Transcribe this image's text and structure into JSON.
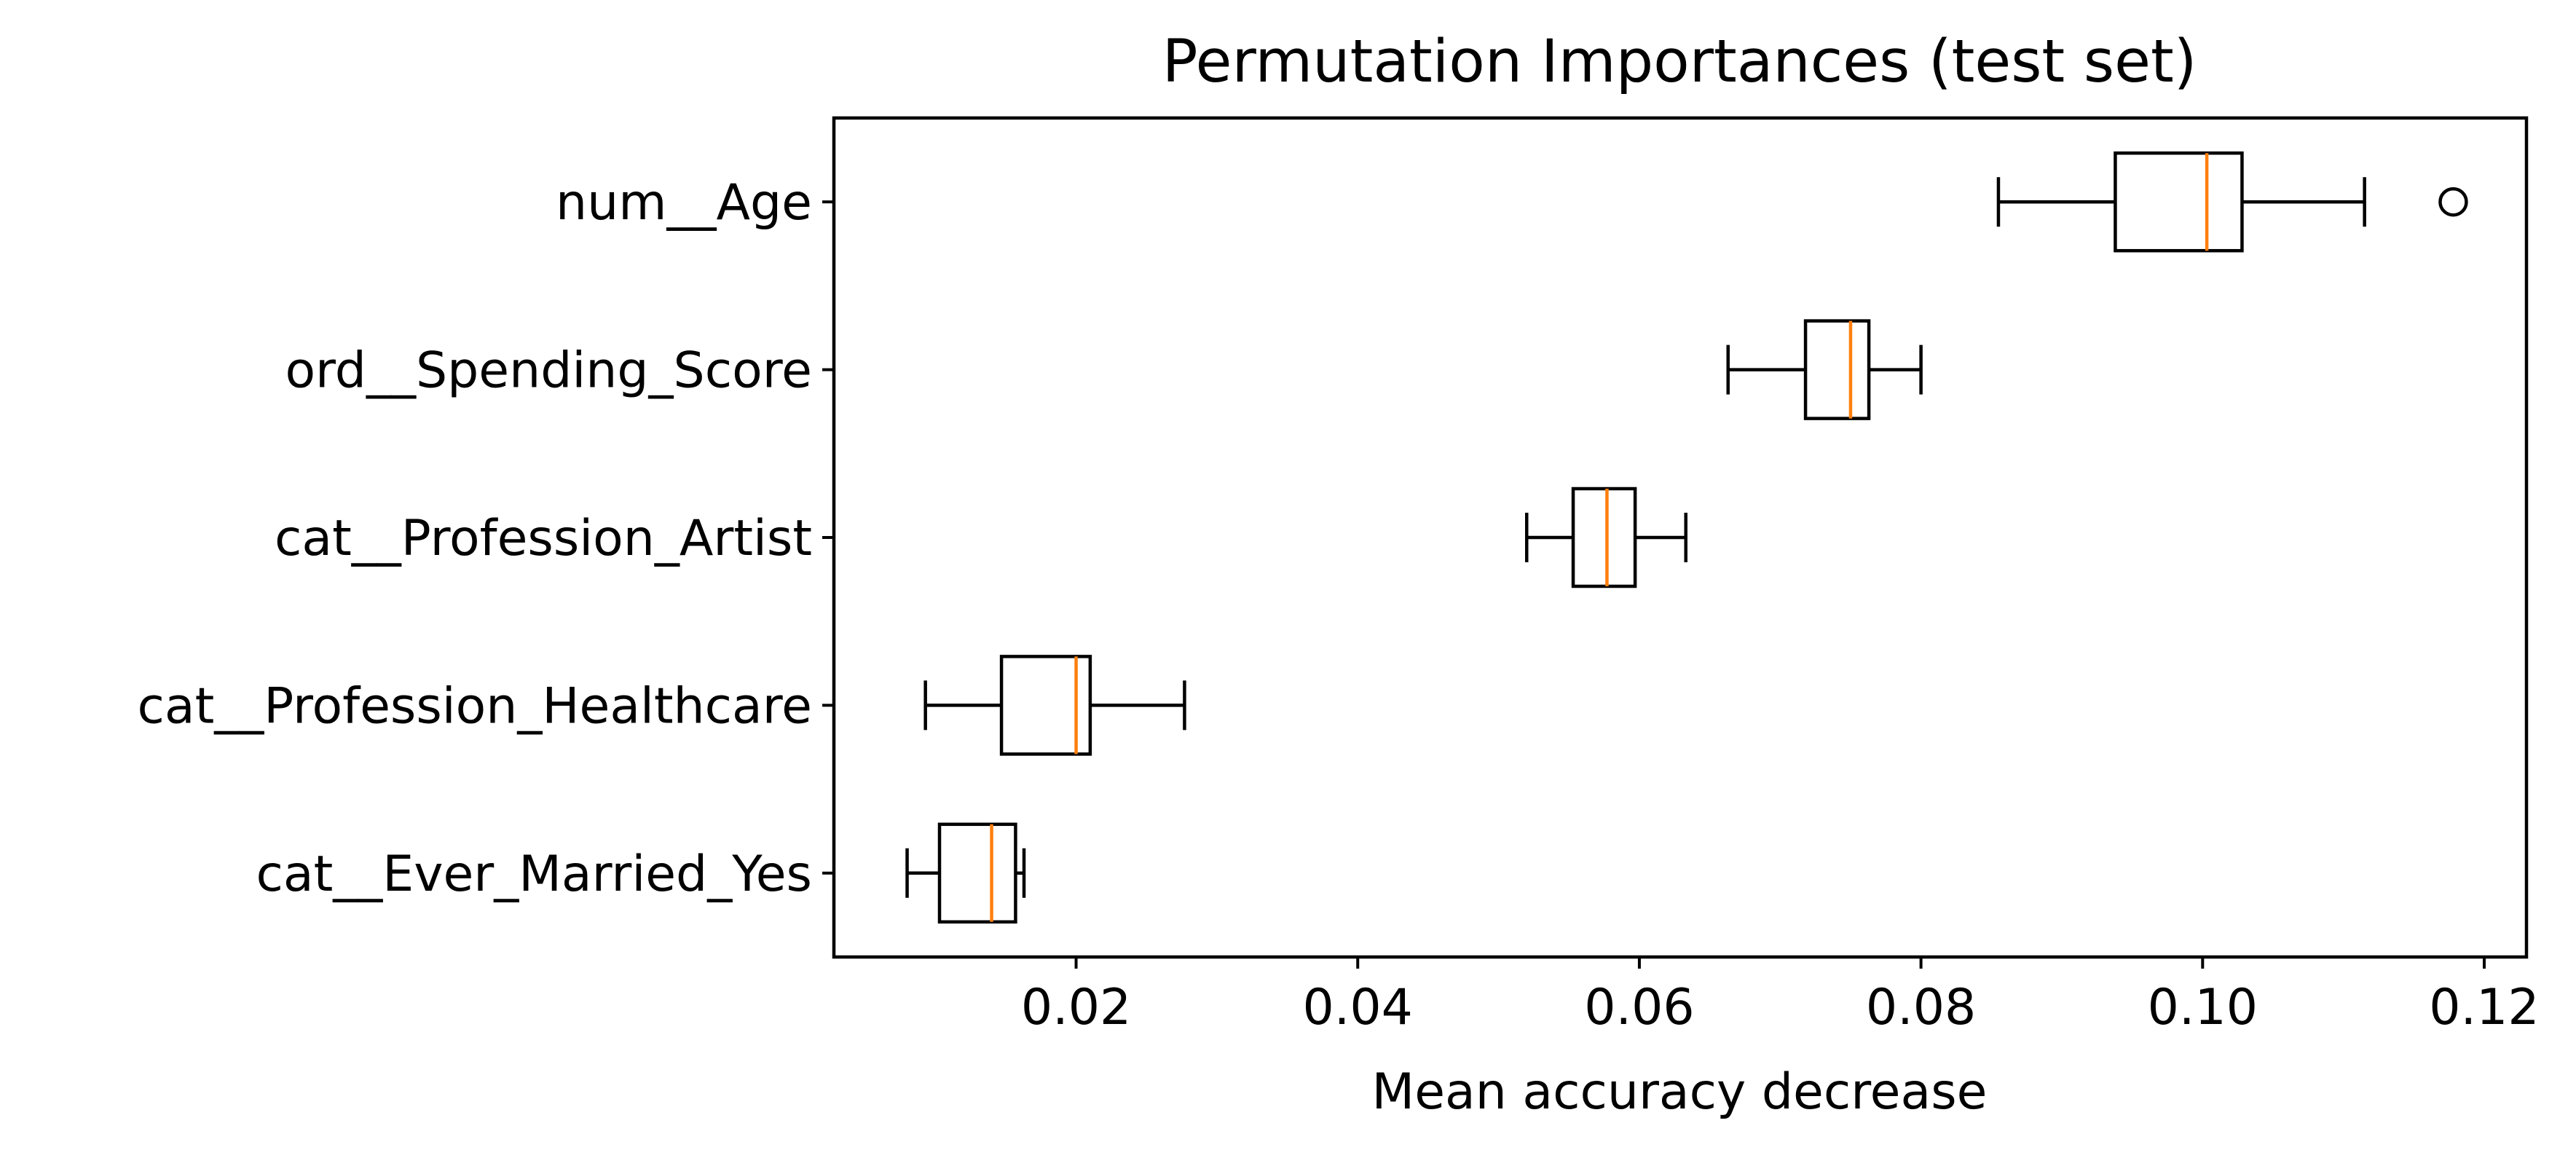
{
  "chart_data": {
    "type": "boxplot",
    "orientation": "horizontal",
    "title": "Permutation Importances (test set)",
    "xlabel": "Mean accuracy decrease",
    "ylabel": "",
    "xlim": [
      0.0028,
      0.123
    ],
    "xticks": [
      0.02,
      0.04,
      0.06,
      0.08,
      0.1,
      0.12
    ],
    "xtick_labels": [
      "0.02",
      "0.04",
      "0.06",
      "0.08",
      "0.10",
      "0.12"
    ],
    "grid": false,
    "colors": {
      "box": "#000000",
      "median": "#ff7f0e"
    },
    "categories": [
      "num__Age",
      "ord__Spending_Score",
      "cat__Profession_Artist",
      "cat__Profession_Healthcare",
      "cat__Ever_Married_Yes"
    ],
    "boxes": [
      {
        "label": "num__Age",
        "whislo": 0.0855,
        "q1": 0.0938,
        "med": 0.1003,
        "q3": 0.1028,
        "whishi": 0.1115,
        "fliers": [
          0.1178
        ]
      },
      {
        "label": "ord__Spending_Score",
        "whislo": 0.0663,
        "q1": 0.0718,
        "med": 0.075,
        "q3": 0.0763,
        "whishi": 0.08,
        "fliers": []
      },
      {
        "label": "cat__Profession_Artist",
        "whislo": 0.052,
        "q1": 0.0553,
        "med": 0.0577,
        "q3": 0.0597,
        "whishi": 0.0633,
        "fliers": []
      },
      {
        "label": "cat__Profession_Healthcare",
        "whislo": 0.0093,
        "q1": 0.0147,
        "med": 0.02,
        "q3": 0.021,
        "whishi": 0.0277,
        "fliers": []
      },
      {
        "label": "cat__Ever_Married_Yes",
        "whislo": 0.008,
        "q1": 0.0103,
        "med": 0.014,
        "q3": 0.0157,
        "whishi": 0.0163,
        "fliers": []
      }
    ]
  }
}
